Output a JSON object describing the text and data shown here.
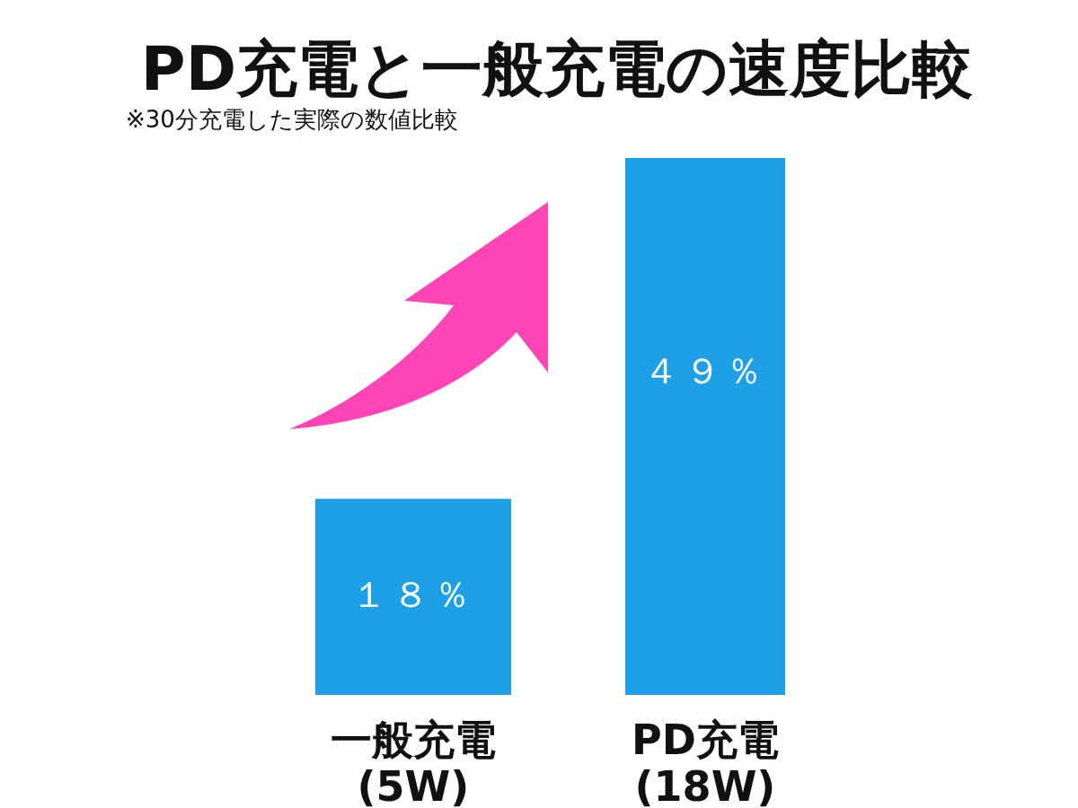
{
  "chart_data": {
    "type": "bar",
    "title": "PD充電と一般充電の速度比較",
    "subtitle": "※30分充電した実際の数値比較",
    "categories": [
      "一般充電\n(5W)",
      "PD充電\n(18W)"
    ],
    "values": [
      18,
      49
    ],
    "color": "#1da0e6",
    "value_labels": [
      "１８％",
      "４９％"
    ]
  }
}
